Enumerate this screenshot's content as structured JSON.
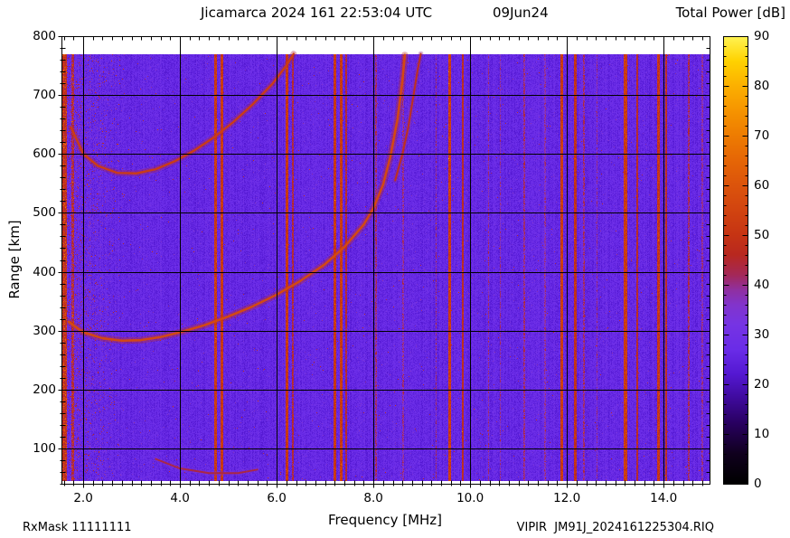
{
  "figure": {
    "title": "Jicamarca 2024 161 22:53:04 UTC",
    "title_date": "09Jun24",
    "colorbar_title": "Total Power [dB]",
    "xlabel": "Frequency [MHz]",
    "ylabel": "Range [km]",
    "footer_left": "RxMask 11111111",
    "footer_right": "VIPIR  JM91J_2024161225304.RIQ"
  },
  "chart_data": {
    "type": "heatmap",
    "title": "Jicamarca 2024 161 22:53:04 UTC  09Jun24",
    "x_axis": {
      "label": "Frequency [MHz]",
      "min": 1.55,
      "max": 14.95,
      "major_ticks": [
        2,
        4,
        6,
        8,
        10,
        12,
        14
      ],
      "tick_labels": [
        "2.0",
        "4.0",
        "6.0",
        "8.0",
        "10.0",
        "12.0",
        "14.0"
      ],
      "minor_step": 0.2
    },
    "y_axis": {
      "label": "Range [km]",
      "min": 40,
      "max": 800,
      "major_ticks": [
        100,
        200,
        300,
        400,
        500,
        600,
        700,
        800
      ],
      "tick_labels": [
        "100",
        "200",
        "300",
        "400",
        "500",
        "600",
        "700",
        "800"
      ],
      "minor_step": 20,
      "data_min": 45,
      "data_max": 770
    },
    "colorbar": {
      "label": "Total Power [dB]",
      "min": 0,
      "max": 90,
      "major_ticks": [
        0,
        10,
        20,
        30,
        40,
        50,
        60,
        70,
        80,
        90
      ],
      "tick_labels": [
        "0",
        "10",
        "20",
        "30",
        "40",
        "50",
        "60",
        "70",
        "80",
        "90"
      ],
      "minor_step": 2,
      "colormap": [
        [
          0,
          "#000000"
        ],
        [
          6,
          "#10001e"
        ],
        [
          12,
          "#28005e"
        ],
        [
          17,
          "#3e0a9a"
        ],
        [
          22,
          "#5418d2"
        ],
        [
          27,
          "#6a2ce8"
        ],
        [
          32,
          "#7634e4"
        ],
        [
          36,
          "#8234cc"
        ],
        [
          39,
          "#9030a0"
        ],
        [
          42,
          "#a42858"
        ],
        [
          46,
          "#b82820"
        ],
        [
          50,
          "#c63414"
        ],
        [
          55,
          "#d24410"
        ],
        [
          60,
          "#dc540c"
        ],
        [
          65,
          "#e66606"
        ],
        [
          70,
          "#ee7c02"
        ],
        [
          75,
          "#f69400"
        ],
        [
          80,
          "#fcb000"
        ],
        [
          85,
          "#ffd200"
        ],
        [
          90,
          "#fff454"
        ]
      ]
    },
    "background_db": 26,
    "pixel_noise_db": 3,
    "column_noise_db": 1.6,
    "left_noise": {
      "f_end": 2.9,
      "prob_at_left": 0.5,
      "max_extra_db": 26
    },
    "rfi_stripes": [
      {
        "f": 1.61,
        "w": 0.12,
        "db": 47
      },
      {
        "f": 1.78,
        "w": 0.05,
        "db": 42
      },
      {
        "f": 4.74,
        "w": 0.06,
        "db": 52
      },
      {
        "f": 4.86,
        "w": 0.06,
        "db": 51
      },
      {
        "f": 6.22,
        "w": 0.06,
        "db": 51
      },
      {
        "f": 6.34,
        "w": 0.04,
        "db": 44
      },
      {
        "f": 7.2,
        "w": 0.05,
        "db": 51
      },
      {
        "f": 7.33,
        "w": 0.05,
        "db": 52
      },
      {
        "f": 7.43,
        "w": 0.04,
        "db": 45
      },
      {
        "f": 8.05,
        "w": 0.03,
        "db": 40
      },
      {
        "f": 8.62,
        "w": 0.03,
        "db": 38
      },
      {
        "f": 9.3,
        "w": 0.03,
        "db": 39
      },
      {
        "f": 9.57,
        "w": 0.06,
        "db": 52
      },
      {
        "f": 9.85,
        "w": 0.04,
        "db": 47
      },
      {
        "f": 10.38,
        "w": 0.03,
        "db": 39
      },
      {
        "f": 10.62,
        "w": 0.03,
        "db": 38
      },
      {
        "f": 11.12,
        "w": 0.03,
        "db": 40
      },
      {
        "f": 11.55,
        "w": 0.03,
        "db": 37
      },
      {
        "f": 11.9,
        "w": 0.06,
        "db": 52
      },
      {
        "f": 12.18,
        "w": 0.05,
        "db": 49
      },
      {
        "f": 12.35,
        "w": 0.03,
        "db": 40
      },
      {
        "f": 12.62,
        "w": 0.03,
        "db": 38
      },
      {
        "f": 13.21,
        "w": 0.06,
        "db": 52
      },
      {
        "f": 13.45,
        "w": 0.04,
        "db": 46
      },
      {
        "f": 13.9,
        "w": 0.06,
        "db": 51
      },
      {
        "f": 14.06,
        "w": 0.04,
        "db": 47
      },
      {
        "f": 14.52,
        "w": 0.03,
        "db": 41
      },
      {
        "f": 14.8,
        "w": 0.03,
        "db": 38
      }
    ],
    "traces": [
      {
        "name": "F-region first hop (O-mode)",
        "db": 54,
        "width": 2.6,
        "points": [
          [
            1.7,
            315
          ],
          [
            2.0,
            297
          ],
          [
            2.4,
            287
          ],
          [
            2.8,
            283
          ],
          [
            3.2,
            284
          ],
          [
            3.6,
            289
          ],
          [
            4.0,
            297
          ],
          [
            4.5,
            309
          ],
          [
            5.0,
            324
          ],
          [
            5.5,
            341
          ],
          [
            6.0,
            361
          ],
          [
            6.5,
            385
          ],
          [
            7.0,
            413
          ],
          [
            7.4,
            442
          ],
          [
            7.8,
            480
          ],
          [
            8.0,
            508
          ],
          [
            8.2,
            548
          ],
          [
            8.35,
            595
          ],
          [
            8.5,
            660
          ],
          [
            8.6,
            725
          ],
          [
            8.65,
            768
          ]
        ]
      },
      {
        "name": "F-region first hop (X-mode)",
        "db": 46,
        "width": 2.0,
        "points": [
          [
            8.45,
            555
          ],
          [
            8.6,
            600
          ],
          [
            8.72,
            645
          ],
          [
            8.82,
            695
          ],
          [
            8.92,
            745
          ],
          [
            8.98,
            770
          ]
        ]
      },
      {
        "name": "F-region second hop",
        "db": 50,
        "width": 2.4,
        "points": [
          [
            1.75,
            645
          ],
          [
            2.0,
            600
          ],
          [
            2.3,
            580
          ],
          [
            2.7,
            568
          ],
          [
            3.1,
            567
          ],
          [
            3.5,
            574
          ],
          [
            3.9,
            588
          ],
          [
            4.3,
            606
          ],
          [
            4.7,
            628
          ],
          [
            5.1,
            654
          ],
          [
            5.5,
            684
          ],
          [
            5.9,
            718
          ],
          [
            6.2,
            750
          ],
          [
            6.35,
            770
          ]
        ]
      },
      {
        "name": "low-altitude faint arc",
        "db": 41,
        "width": 2.0,
        "points": [
          [
            3.5,
            82
          ],
          [
            4.0,
            66
          ],
          [
            4.6,
            58
          ],
          [
            5.2,
            58
          ],
          [
            5.6,
            64
          ]
        ]
      }
    ]
  }
}
